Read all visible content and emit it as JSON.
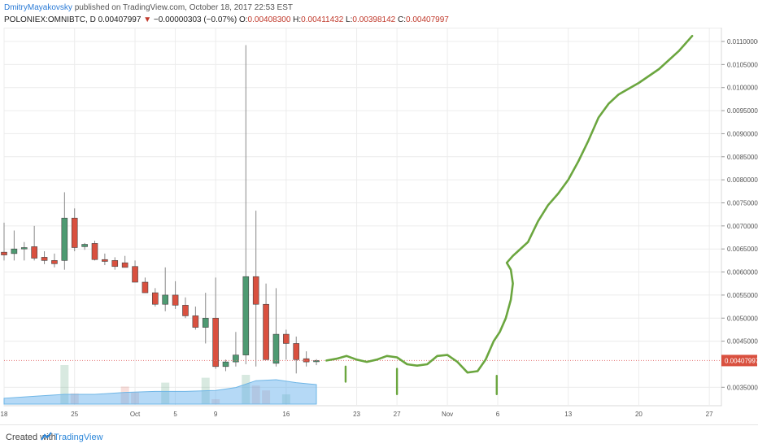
{
  "header": {
    "author": "DmitryMayakovsky",
    "published": "published on TradingView.com, October 18, 2017 22:53 EST",
    "symbol": "POLONIEX:OMNIBTC, D",
    "last": "0.00407997",
    "arrow": "▼",
    "change": "−0.00000303 (−0.07%)",
    "o_label": "O:",
    "o_val": "0.00408300",
    "h_label": "H:",
    "h_val": "0.00411432",
    "l_label": "L:",
    "l_val": "0.00398142",
    "c_label": "C:",
    "c_val": "0.00407997"
  },
  "footer": {
    "created": "Created with",
    "brand": "TradingView"
  },
  "colors": {
    "up": "#4e9a72",
    "down": "#d9503f",
    "forecast": "#6ba63f",
    "grid": "#ececec",
    "price_line": "#e57373"
  },
  "chart_data": {
    "type": "candlestick",
    "y_ticks": [
      "0.01100000",
      "0.01050000",
      "0.01000000",
      "0.00950000",
      "0.00900000",
      "0.00850000",
      "0.00800000",
      "0.00750000",
      "0.00700000",
      "0.00650000",
      "0.00600000",
      "0.00550000",
      "0.00500000",
      "0.00450000",
      "0.00350000"
    ],
    "y_tick_values": [
      0.011,
      0.0105,
      0.01,
      0.0095,
      0.009,
      0.0085,
      0.008,
      0.0075,
      0.007,
      0.0065,
      0.006,
      0.0055,
      0.005,
      0.0045,
      0.0035
    ],
    "ylim": [
      0.0031,
      0.0113
    ],
    "x_ticks": [
      "18",
      "25",
      "Oct",
      "5",
      "9",
      "16",
      "23",
      "27",
      "Nov",
      "6",
      "13",
      "20",
      "27"
    ],
    "x_tick_days": [
      0,
      7,
      13,
      17,
      21,
      28,
      35,
      39,
      44,
      49,
      56,
      63,
      70
    ],
    "xlim": [
      0,
      71.2
    ],
    "last_price_label": "0.00407997",
    "last_price": 0.00408,
    "candles": [
      {
        "d": 0,
        "o": 0.00643,
        "h": 0.00707,
        "l": 0.00625,
        "c": 0.00637
      },
      {
        "d": 1,
        "o": 0.0064,
        "h": 0.0069,
        "l": 0.00625,
        "c": 0.0065
      },
      {
        "d": 2,
        "o": 0.0065,
        "h": 0.00665,
        "l": 0.00625,
        "c": 0.00653
      },
      {
        "d": 3,
        "o": 0.00655,
        "h": 0.007,
        "l": 0.00625,
        "c": 0.0063
      },
      {
        "d": 4,
        "o": 0.00632,
        "h": 0.00645,
        "l": 0.00617,
        "c": 0.00625
      },
      {
        "d": 5,
        "o": 0.00625,
        "h": 0.0064,
        "l": 0.0061,
        "c": 0.00618
      },
      {
        "d": 6,
        "o": 0.00625,
        "h": 0.00773,
        "l": 0.00605,
        "c": 0.00717
      },
      {
        "d": 7,
        "o": 0.00717,
        "h": 0.00738,
        "l": 0.00645,
        "c": 0.00653
      },
      {
        "d": 8,
        "o": 0.00655,
        "h": 0.00663,
        "l": 0.00648,
        "c": 0.0066
      },
      {
        "d": 9,
        "o": 0.00662,
        "h": 0.00668,
        "l": 0.00625,
        "c": 0.00627
      },
      {
        "d": 10,
        "o": 0.00627,
        "h": 0.0064,
        "l": 0.00615,
        "c": 0.00623
      },
      {
        "d": 11,
        "o": 0.00625,
        "h": 0.00632,
        "l": 0.00605,
        "c": 0.00612
      },
      {
        "d": 12,
        "o": 0.0062,
        "h": 0.00635,
        "l": 0.0061,
        "c": 0.0061
      },
      {
        "d": 13,
        "o": 0.00612,
        "h": 0.00625,
        "l": 0.00578,
        "c": 0.00578
      },
      {
        "d": 14,
        "o": 0.00578,
        "h": 0.00588,
        "l": 0.00555,
        "c": 0.00555
      },
      {
        "d": 15,
        "o": 0.00555,
        "h": 0.00565,
        "l": 0.00525,
        "c": 0.0053
      },
      {
        "d": 16,
        "o": 0.0053,
        "h": 0.0061,
        "l": 0.00515,
        "c": 0.0055
      },
      {
        "d": 17,
        "o": 0.0055,
        "h": 0.0058,
        "l": 0.0052,
        "c": 0.00528
      },
      {
        "d": 18,
        "o": 0.00528,
        "h": 0.00545,
        "l": 0.005,
        "c": 0.00505
      },
      {
        "d": 19,
        "o": 0.00505,
        "h": 0.00525,
        "l": 0.00475,
        "c": 0.0048
      },
      {
        "d": 20,
        "o": 0.0048,
        "h": 0.00555,
        "l": 0.00445,
        "c": 0.005
      },
      {
        "d": 21,
        "o": 0.005,
        "h": 0.00588,
        "l": 0.0039,
        "c": 0.00395
      },
      {
        "d": 22,
        "o": 0.00395,
        "h": 0.0041,
        "l": 0.00385,
        "c": 0.00405
      },
      {
        "d": 23,
        "o": 0.00405,
        "h": 0.0047,
        "l": 0.00395,
        "c": 0.0042
      },
      {
        "d": 24,
        "o": 0.0042,
        "h": 0.01092,
        "l": 0.004,
        "c": 0.0059
      },
      {
        "d": 25,
        "o": 0.0059,
        "h": 0.00733,
        "l": 0.00395,
        "c": 0.0053
      },
      {
        "d": 26,
        "o": 0.0053,
        "h": 0.00575,
        "l": 0.0041,
        "c": 0.0041
      },
      {
        "d": 27,
        "o": 0.00402,
        "h": 0.00565,
        "l": 0.00395,
        "c": 0.00465
      },
      {
        "d": 28,
        "o": 0.00465,
        "h": 0.00475,
        "l": 0.0041,
        "c": 0.00445
      },
      {
        "d": 29,
        "o": 0.00445,
        "h": 0.0046,
        "l": 0.0038,
        "c": 0.0041
      },
      {
        "d": 30,
        "o": 0.00412,
        "h": 0.00428,
        "l": 0.00395,
        "c": 0.00405
      },
      {
        "d": 31,
        "o": 0.00408,
        "h": 0.00411,
        "l": 0.00398,
        "c": 0.00408
      }
    ],
    "volume": [
      {
        "d": 6,
        "v": 0.4,
        "up": true
      },
      {
        "d": 7,
        "v": 0.11,
        "up": false
      },
      {
        "d": 12,
        "v": 0.18,
        "up": false
      },
      {
        "d": 13,
        "v": 0.12,
        "up": false
      },
      {
        "d": 16,
        "v": 0.22,
        "up": true
      },
      {
        "d": 20,
        "v": 0.27,
        "up": true
      },
      {
        "d": 21,
        "v": 0.05,
        "up": false
      },
      {
        "d": 24,
        "v": 0.3,
        "up": true
      },
      {
        "d": 25,
        "v": 0.19,
        "up": false
      },
      {
        "d": 26,
        "v": 0.14,
        "up": false
      },
      {
        "d": 28,
        "v": 0.1,
        "up": true
      }
    ],
    "volume_ma": [
      [
        0,
        0.06
      ],
      [
        3,
        0.08
      ],
      [
        6,
        0.1
      ],
      [
        9,
        0.1
      ],
      [
        12,
        0.12
      ],
      [
        15,
        0.13
      ],
      [
        18,
        0.13
      ],
      [
        21,
        0.14
      ],
      [
        23,
        0.17
      ],
      [
        25,
        0.24
      ],
      [
        27,
        0.25
      ],
      [
        29,
        0.22
      ],
      [
        31,
        0.2
      ]
    ],
    "forecast": [
      [
        32,
        0.00408
      ],
      [
        33,
        0.00412
      ],
      [
        34,
        0.00418
      ],
      [
        35,
        0.0041
      ],
      [
        36,
        0.00405
      ],
      [
        37,
        0.0041
      ],
      [
        38,
        0.00418
      ],
      [
        39,
        0.00415
      ],
      [
        40,
        0.004
      ],
      [
        41,
        0.00397
      ],
      [
        42,
        0.004
      ],
      [
        43,
        0.00418
      ],
      [
        44,
        0.0042
      ],
      [
        45,
        0.00405
      ],
      [
        46,
        0.00382
      ],
      [
        47,
        0.00385
      ],
      [
        47.8,
        0.0041
      ],
      [
        48.6,
        0.0045
      ],
      [
        49.2,
        0.0047
      ],
      [
        49.8,
        0.005
      ],
      [
        50.3,
        0.0054
      ],
      [
        50.5,
        0.00575
      ],
      [
        50.3,
        0.00605
      ],
      [
        49.9,
        0.0062
      ],
      [
        50.5,
        0.00635
      ],
      [
        52,
        0.00665
      ],
      [
        53,
        0.0071
      ],
      [
        54,
        0.00745
      ],
      [
        55,
        0.0077
      ],
      [
        56,
        0.008
      ],
      [
        57,
        0.0084
      ],
      [
        58,
        0.00885
      ],
      [
        59,
        0.00935
      ],
      [
        60,
        0.00965
      ],
      [
        61,
        0.00985
      ],
      [
        63,
        0.0101
      ],
      [
        65,
        0.0104
      ],
      [
        67,
        0.0108
      ],
      [
        68.3,
        0.01112
      ]
    ],
    "forecast_ticks": [
      [
        33.9,
        0.00395,
        0.00362
      ],
      [
        39.0,
        0.00335,
        0.0039
      ],
      [
        48.9,
        0.00335,
        0.00375
      ]
    ]
  }
}
